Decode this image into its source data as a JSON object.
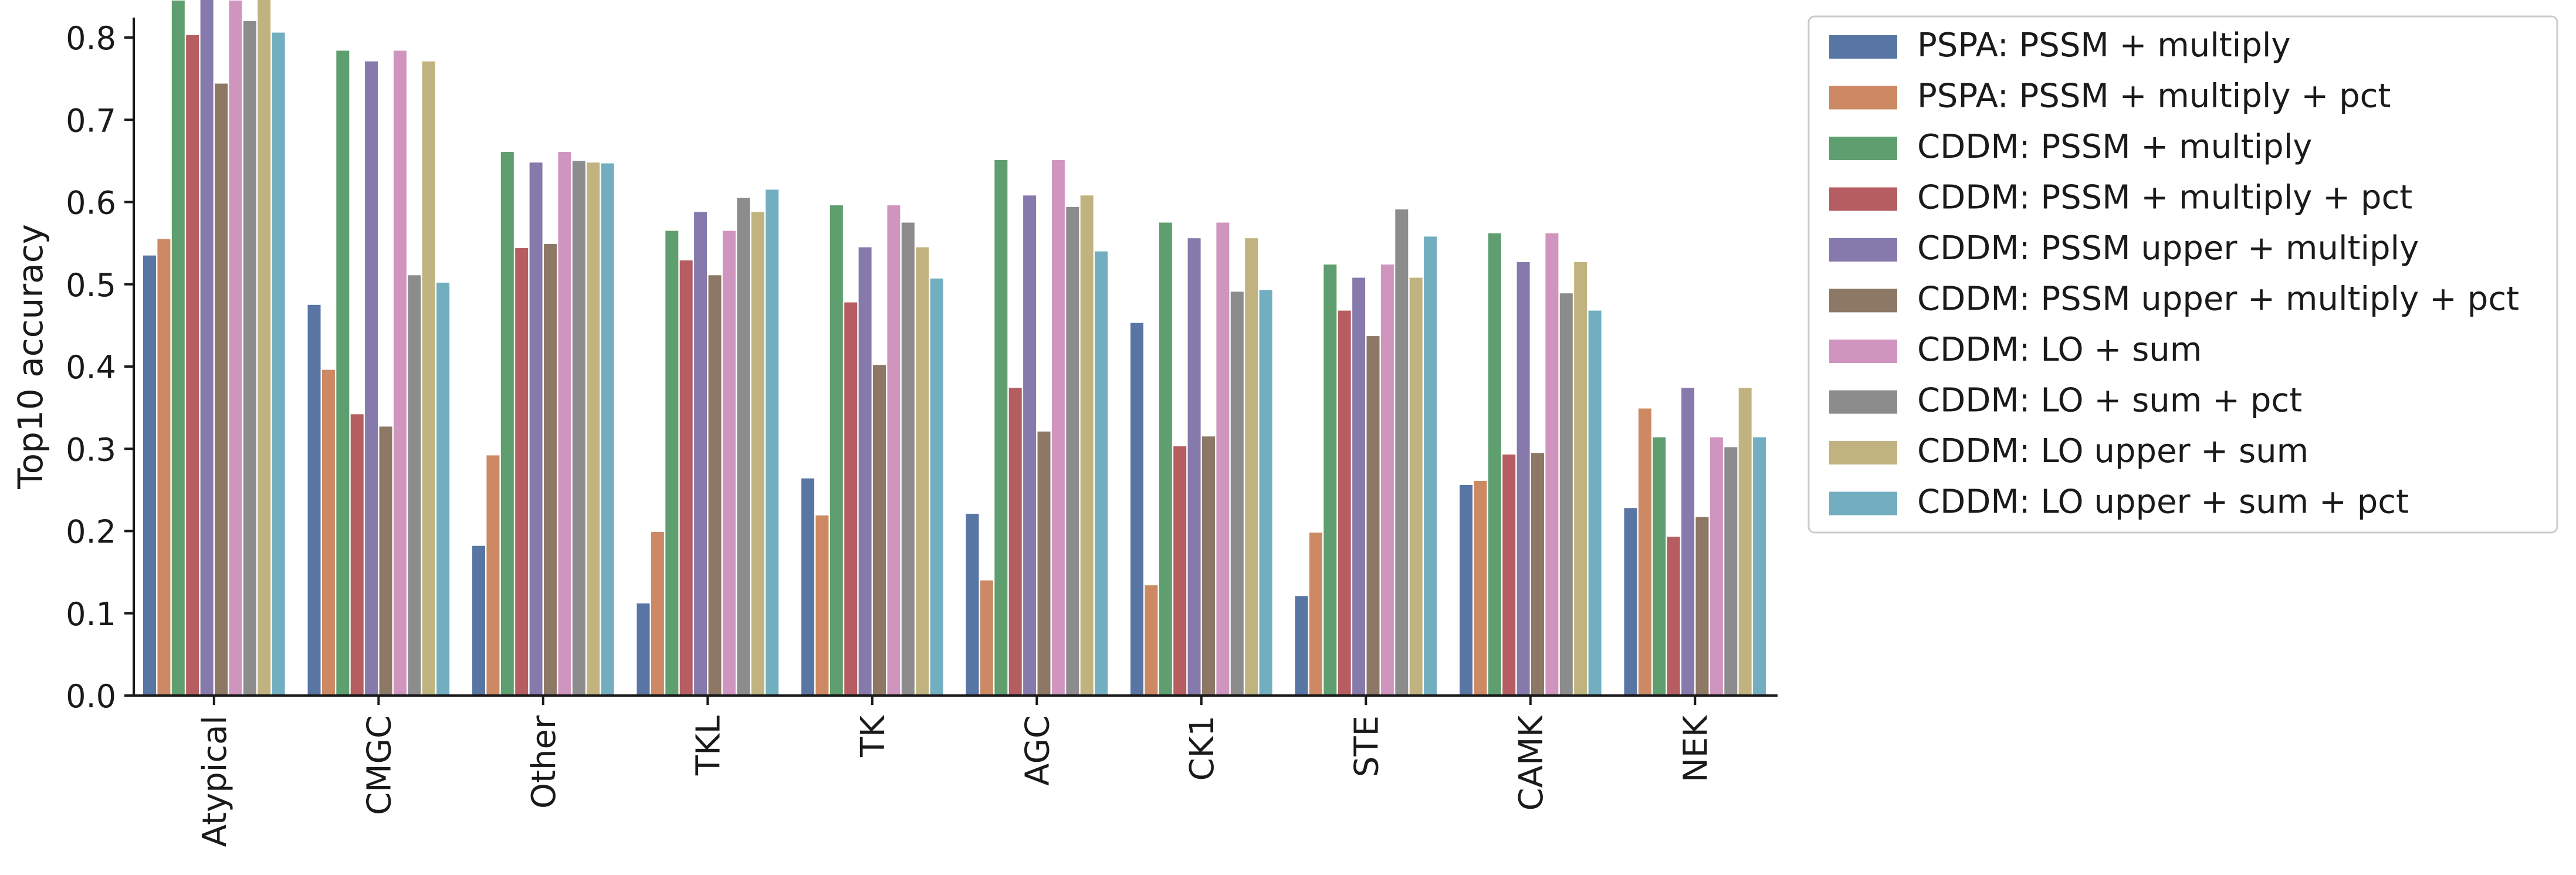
{
  "chart_data": {
    "type": "bar",
    "title": "",
    "xlabel": "",
    "ylabel": "Top10 accuracy",
    "ylim": [
      0,
      0.89
    ],
    "yticks": [
      0.0,
      0.1,
      0.2,
      0.3,
      0.4,
      0.5,
      0.6,
      0.7,
      0.8
    ],
    "ytick_labels": [
      "0.0",
      "0.1",
      "0.2",
      "0.3",
      "0.4",
      "0.5",
      "0.6",
      "0.7",
      "0.8"
    ],
    "grid": false,
    "legend_position": "outside-right-top",
    "categories": [
      "Atypical",
      "CMGC",
      "Other",
      "TKL",
      "TK",
      "AGC",
      "CK1",
      "STE",
      "CAMK",
      "NEK"
    ],
    "series": [
      {
        "name": "PSPA: PSSM + multiply",
        "color": "#5875a4",
        "values": [
          0.535,
          0.475,
          0.182,
          0.112,
          0.264,
          0.221,
          0.453,
          0.121,
          0.256,
          0.228
        ]
      },
      {
        "name": "PSPA: PSSM + multiply + pct",
        "color": "#cc8963",
        "values": [
          0.555,
          0.396,
          0.292,
          0.199,
          0.219,
          0.14,
          0.134,
          0.198,
          0.261,
          0.349
        ]
      },
      {
        "name": "CDDM: PSSM + multiply",
        "color": "#5f9e6e",
        "values": [
          0.845,
          0.784,
          0.661,
          0.565,
          0.596,
          0.651,
          0.575,
          0.524,
          0.562,
          0.314
        ]
      },
      {
        "name": "CDDM: PSSM + multiply + pct",
        "color": "#b55d60",
        "values": [
          0.803,
          0.342,
          0.544,
          0.529,
          0.478,
          0.374,
          0.303,
          0.468,
          0.293,
          0.193
        ]
      },
      {
        "name": "CDDM: PSSM upper + multiply",
        "color": "#857aab",
        "values": [
          0.847,
          0.771,
          0.648,
          0.588,
          0.545,
          0.608,
          0.556,
          0.508,
          0.527,
          0.374
        ]
      },
      {
        "name": "CDDM: PSSM upper + multiply + pct",
        "color": "#8d7866",
        "values": [
          0.744,
          0.327,
          0.549,
          0.511,
          0.402,
          0.321,
          0.315,
          0.437,
          0.295,
          0.217
        ]
      },
      {
        "name": "CDDM: LO + sum",
        "color": "#d095bf",
        "values": [
          0.845,
          0.784,
          0.661,
          0.565,
          0.596,
          0.651,
          0.575,
          0.524,
          0.562,
          0.314
        ]
      },
      {
        "name": "CDDM: LO + sum + pct",
        "color": "#8c8c8c",
        "values": [
          0.82,
          0.511,
          0.65,
          0.605,
          0.575,
          0.594,
          0.491,
          0.591,
          0.489,
          0.302
        ]
      },
      {
        "name": "CDDM: LO upper + sum",
        "color": "#c1b37f",
        "values": [
          0.847,
          0.771,
          0.648,
          0.588,
          0.545,
          0.608,
          0.556,
          0.508,
          0.527,
          0.374
        ]
      },
      {
        "name": "CDDM: LO upper + sum + pct",
        "color": "#71aec0",
        "values": [
          0.806,
          0.502,
          0.647,
          0.615,
          0.507,
          0.54,
          0.493,
          0.558,
          0.468,
          0.314
        ]
      }
    ]
  }
}
